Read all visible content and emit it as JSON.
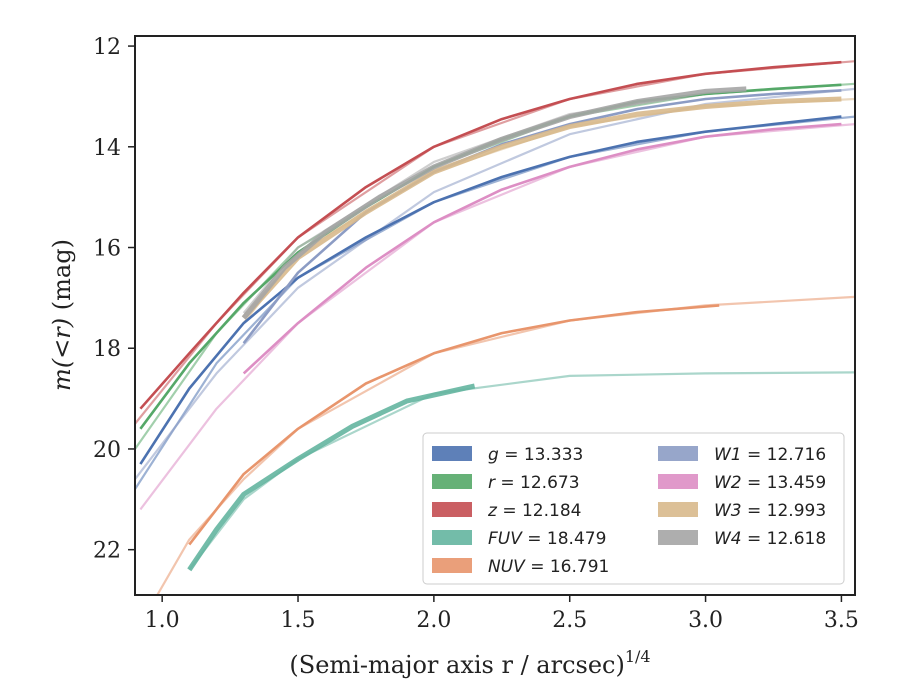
{
  "chart_data": {
    "type": "line",
    "xlabel": "(Semi-major axis r / arcsec)",
    "xlabel_exponent": "1/4",
    "ylabel_math": "m(<r)",
    "ylabel_unit": "(mag)",
    "xlim": [
      0.9,
      3.55
    ],
    "ylim": [
      22.9,
      11.8
    ],
    "y_inverted": true,
    "xticks": [
      1.0,
      1.5,
      2.0,
      2.5,
      3.0,
      3.5
    ],
    "xtick_labels": [
      "1.0",
      "1.5",
      "2.0",
      "2.5",
      "3.0",
      "3.5"
    ],
    "yticks": [
      12,
      14,
      16,
      18,
      20,
      22
    ],
    "ytick_labels": [
      "12",
      "14",
      "16",
      "18",
      "20",
      "22"
    ],
    "grid": false,
    "legend_position": "lower-right",
    "legend_columns": 2,
    "series": [
      {
        "name": "g",
        "total": "13.333",
        "color": "#4c72b0",
        "extrap": [
          [
            0.9,
            20.8
          ],
          [
            1.2,
            18.3
          ],
          [
            1.5,
            16.6
          ],
          [
            2.0,
            15.1
          ],
          [
            2.5,
            14.2
          ],
          [
            3.0,
            13.7
          ],
          [
            3.55,
            13.4
          ]
        ],
        "measured": [
          [
            0.92,
            20.3
          ],
          [
            1.1,
            18.8
          ],
          [
            1.3,
            17.5
          ],
          [
            1.5,
            16.6
          ],
          [
            1.75,
            15.8
          ],
          [
            2.0,
            15.1
          ],
          [
            2.25,
            14.6
          ],
          [
            2.5,
            14.2
          ],
          [
            2.75,
            13.9
          ],
          [
            3.0,
            13.7
          ],
          [
            3.25,
            13.55
          ],
          [
            3.5,
            13.4
          ]
        ]
      },
      {
        "name": "r",
        "total": "12.673",
        "color": "#55a868",
        "extrap": [
          [
            0.9,
            20.0
          ],
          [
            1.2,
            17.7
          ],
          [
            1.5,
            16.0
          ],
          [
            2.0,
            14.4
          ],
          [
            2.5,
            13.4
          ],
          [
            3.0,
            12.95
          ],
          [
            3.55,
            12.75
          ]
        ],
        "measured": [
          [
            0.92,
            19.6
          ],
          [
            1.1,
            18.3
          ],
          [
            1.3,
            17.1
          ],
          [
            1.5,
            16.1
          ],
          [
            1.75,
            15.2
          ],
          [
            2.0,
            14.4
          ],
          [
            2.25,
            13.85
          ],
          [
            2.5,
            13.4
          ],
          [
            2.75,
            13.1
          ],
          [
            3.0,
            12.95
          ],
          [
            3.25,
            12.85
          ],
          [
            3.5,
            12.77
          ]
        ]
      },
      {
        "name": "z",
        "total": "12.184",
        "color": "#c44e52",
        "extrap": [
          [
            0.9,
            19.5
          ],
          [
            1.2,
            17.5
          ],
          [
            1.5,
            15.8
          ],
          [
            2.0,
            14.0
          ],
          [
            2.5,
            13.05
          ],
          [
            3.0,
            12.55
          ],
          [
            3.55,
            12.3
          ]
        ],
        "measured": [
          [
            0.92,
            19.2
          ],
          [
            1.1,
            18.1
          ],
          [
            1.3,
            16.9
          ],
          [
            1.5,
            15.8
          ],
          [
            1.75,
            14.8
          ],
          [
            2.0,
            14.0
          ],
          [
            2.25,
            13.45
          ],
          [
            2.5,
            13.05
          ],
          [
            2.75,
            12.75
          ],
          [
            3.0,
            12.55
          ],
          [
            3.25,
            12.42
          ],
          [
            3.5,
            12.32
          ]
        ]
      },
      {
        "name": "FUV",
        "total": "18.479",
        "color": "#64b5a0",
        "extrap": [
          [
            1.1,
            22.4
          ],
          [
            1.3,
            21.0
          ],
          [
            1.5,
            20.2
          ],
          [
            2.0,
            18.9
          ],
          [
            2.5,
            18.55
          ],
          [
            3.0,
            18.5
          ],
          [
            3.55,
            18.48
          ]
        ],
        "measured": [
          [
            1.1,
            22.4
          ],
          [
            1.2,
            21.6
          ],
          [
            1.3,
            20.9
          ],
          [
            1.5,
            20.2
          ],
          [
            1.7,
            19.55
          ],
          [
            1.9,
            19.05
          ],
          [
            2.15,
            18.75
          ]
        ]
      },
      {
        "name": "NUV",
        "total": "16.791",
        "color": "#e8956c",
        "extrap": [
          [
            0.95,
            23.2
          ],
          [
            1.1,
            21.8
          ],
          [
            1.3,
            20.6
          ],
          [
            1.5,
            19.6
          ],
          [
            2.0,
            18.1
          ],
          [
            2.5,
            17.45
          ],
          [
            3.0,
            17.15
          ],
          [
            3.55,
            16.98
          ]
        ],
        "measured": [
          [
            1.1,
            21.9
          ],
          [
            1.3,
            20.5
          ],
          [
            1.5,
            19.6
          ],
          [
            1.75,
            18.7
          ],
          [
            2.0,
            18.1
          ],
          [
            2.25,
            17.7
          ],
          [
            2.5,
            17.45
          ],
          [
            2.75,
            17.28
          ],
          [
            3.05,
            17.15
          ]
        ]
      },
      {
        "name": "W1",
        "total": "12.716",
        "color": "#8c9cc4",
        "extrap": [
          [
            0.9,
            20.6
          ],
          [
            1.2,
            18.5
          ],
          [
            1.5,
            16.8
          ],
          [
            2.0,
            14.9
          ],
          [
            2.5,
            13.75
          ],
          [
            3.0,
            13.15
          ],
          [
            3.55,
            12.85
          ]
        ],
        "measured": [
          [
            1.3,
            17.9
          ],
          [
            1.5,
            16.5
          ],
          [
            1.75,
            15.3
          ],
          [
            2.0,
            14.5
          ],
          [
            2.25,
            13.95
          ],
          [
            2.5,
            13.55
          ],
          [
            2.75,
            13.25
          ],
          [
            3.0,
            13.05
          ],
          [
            3.25,
            12.95
          ],
          [
            3.5,
            12.88
          ]
        ]
      },
      {
        "name": "W2",
        "total": "13.459",
        "color": "#dd8ec4",
        "extrap": [
          [
            0.92,
            21.2
          ],
          [
            1.2,
            19.2
          ],
          [
            1.5,
            17.5
          ],
          [
            2.0,
            15.5
          ],
          [
            2.5,
            14.4
          ],
          [
            3.0,
            13.8
          ],
          [
            3.55,
            13.55
          ]
        ],
        "measured": [
          [
            1.3,
            18.5
          ],
          [
            1.5,
            17.5
          ],
          [
            1.75,
            16.4
          ],
          [
            2.0,
            15.5
          ],
          [
            2.25,
            14.85
          ],
          [
            2.5,
            14.4
          ],
          [
            2.75,
            14.05
          ],
          [
            3.0,
            13.8
          ],
          [
            3.25,
            13.65
          ],
          [
            3.5,
            13.55
          ]
        ]
      },
      {
        "name": "W3",
        "total": "12.993",
        "color": "#d8b98c",
        "extrap": [
          [
            1.3,
            17.5
          ],
          [
            1.5,
            16.1
          ],
          [
            2.0,
            14.5
          ],
          [
            2.5,
            13.6
          ],
          [
            3.0,
            13.2
          ],
          [
            3.55,
            13.05
          ]
        ],
        "measured": [
          [
            1.3,
            17.4
          ],
          [
            1.5,
            16.2
          ],
          [
            1.75,
            15.3
          ],
          [
            2.0,
            14.5
          ],
          [
            2.25,
            14.0
          ],
          [
            2.5,
            13.6
          ],
          [
            2.75,
            13.35
          ],
          [
            3.0,
            13.2
          ],
          [
            3.25,
            13.1
          ],
          [
            3.5,
            13.05
          ]
        ]
      },
      {
        "name": "W4",
        "total": "12.618",
        "color": "#a5a5a5",
        "extrap": [
          [
            1.3,
            17.3
          ],
          [
            1.5,
            16.0
          ],
          [
            2.0,
            14.3
          ],
          [
            2.5,
            13.35
          ],
          [
            3.0,
            12.95
          ],
          [
            3.15,
            12.9
          ]
        ],
        "measured": [
          [
            1.3,
            17.4
          ],
          [
            1.45,
            16.4
          ],
          [
            1.6,
            15.7
          ],
          [
            1.8,
            15.0
          ],
          [
            2.0,
            14.4
          ],
          [
            2.25,
            13.85
          ],
          [
            2.5,
            13.4
          ],
          [
            2.75,
            13.1
          ],
          [
            3.0,
            12.9
          ],
          [
            3.15,
            12.85
          ]
        ]
      }
    ]
  }
}
